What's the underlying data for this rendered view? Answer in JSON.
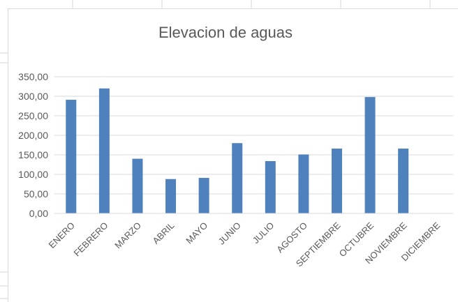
{
  "chart_data": {
    "type": "bar",
    "title": "Elevacion de aguas",
    "xlabel": "",
    "ylabel": "",
    "categories": [
      "ENERO",
      "FEBRERO",
      "MARZO",
      "ABRIL",
      "MAYO",
      "JUNIO",
      "JULIO",
      "AGOSTO",
      "SEPTIEMBRE",
      "OCTUBRE",
      "NOVIEMBRE",
      "DICIEMBRE"
    ],
    "values": [
      291,
      320,
      140,
      88,
      91,
      180,
      134,
      151,
      166,
      298,
      166,
      null
    ],
    "ylim": [
      0,
      350
    ],
    "yticks": [
      "0,00",
      "50,00",
      "100,00",
      "150,00",
      "200,00",
      "250,00",
      "300,00",
      "350,00"
    ],
    "grid": true,
    "legend": "none",
    "bar_color": "#4f81bd",
    "grid_color": "#d9d9d9",
    "text_color": "#595959"
  }
}
